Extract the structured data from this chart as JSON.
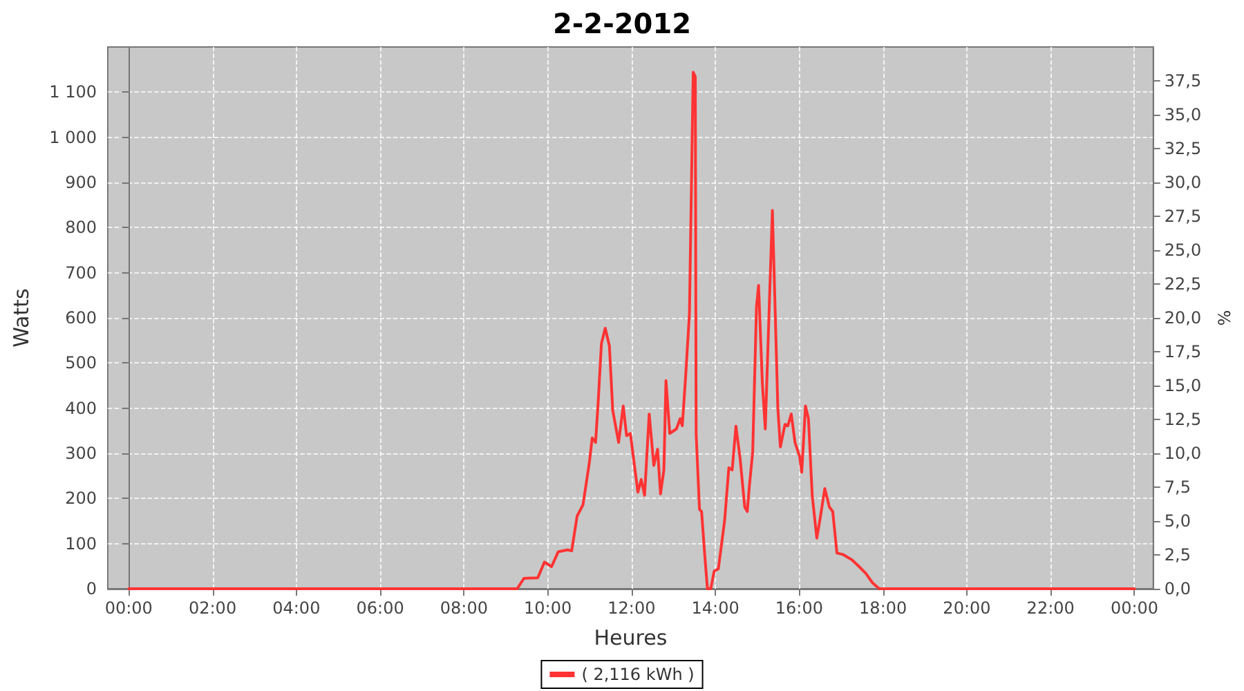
{
  "chart_data": {
    "type": "line",
    "title": "2-2-2012",
    "xlabel": "Heures",
    "ylabel": "Watts",
    "y2label": "%",
    "x": [
      0,
      9.27,
      9.43,
      9.76,
      9.92,
      10.09,
      10.25,
      10.47,
      10.57,
      10.7,
      10.84,
      10.99,
      11.06,
      11.14,
      11.2,
      11.28,
      11.37,
      11.47,
      11.55,
      11.69,
      11.8,
      11.88,
      11.97,
      12.15,
      12.23,
      12.31,
      12.42,
      12.53,
      12.62,
      12.69,
      12.77,
      12.82,
      12.91,
      13.07,
      13.16,
      13.21,
      13.29,
      13.38,
      13.47,
      13.52,
      13.54,
      13.62,
      13.67,
      13.75,
      13.81,
      13.89,
      13.97,
      14.07,
      14.22,
      14.32,
      14.4,
      14.49,
      14.59,
      14.7,
      14.76,
      14.81,
      14.89,
      14.98,
      15.03,
      15.12,
      15.19,
      15.36,
      15.41,
      15.49,
      15.55,
      15.66,
      15.73,
      15.81,
      15.9,
      16.01,
      16.06,
      16.15,
      16.22,
      16.31,
      16.42,
      16.5,
      16.61,
      16.72,
      16.8,
      16.9,
      17.04,
      17.26,
      17.43,
      17.59,
      17.75,
      17.91,
      24
    ],
    "series": [
      {
        "name": "( 2,116 kWh )",
        "color": "#ff3333",
        "values": [
          0,
          0,
          23,
          24,
          59,
          49,
          82,
          86,
          84,
          161,
          186,
          278,
          334,
          324,
          410,
          543,
          577,
          538,
          395,
          324,
          405,
          339,
          344,
          214,
          242,
          207,
          387,
          273,
          309,
          210,
          263,
          461,
          344,
          354,
          377,
          361,
          471,
          609,
          1144,
          1134,
          344,
          176,
          171,
          69,
          0,
          0,
          39,
          44,
          151,
          268,
          263,
          360,
          288,
          181,
          171,
          227,
          303,
          624,
          672,
          456,
          354,
          838,
          670,
          400,
          314,
          364,
          361,
          387,
          324,
          293,
          258,
          405,
          377,
          207,
          112,
          156,
          222,
          181,
          171,
          79,
          76,
          64,
          49,
          34,
          13,
          0,
          0
        ]
      }
    ],
    "xlim": [
      -0.5,
      24.45
    ],
    "xticks": [
      {
        "value": 0,
        "label": "00:00"
      },
      {
        "value": 2,
        "label": "02:00"
      },
      {
        "value": 4,
        "label": "04:00"
      },
      {
        "value": 6,
        "label": "06:00"
      },
      {
        "value": 8,
        "label": "08:00"
      },
      {
        "value": 10,
        "label": "10:00"
      },
      {
        "value": 12,
        "label": "12:00"
      },
      {
        "value": 14,
        "label": "14:00"
      },
      {
        "value": 16,
        "label": "16:00"
      },
      {
        "value": 18,
        "label": "18:00"
      },
      {
        "value": 20,
        "label": "20:00"
      },
      {
        "value": 22,
        "label": "22:00"
      },
      {
        "value": 24,
        "label": "00:00"
      }
    ],
    "ylim": [
      0,
      1200
    ],
    "yticks": [
      0,
      100,
      200,
      300,
      400,
      500,
      600,
      700,
      800,
      900,
      {
        "value": 1000,
        "label": "1 000"
      },
      {
        "value": 1100,
        "label": "1 100"
      }
    ],
    "y2lim": [
      0,
      40
    ],
    "y2ticks": [
      {
        "value": 0,
        "label": "0,0"
      },
      {
        "value": 2.5,
        "label": "2,5"
      },
      {
        "value": 5,
        "label": "5,0"
      },
      {
        "value": 7.5,
        "label": "7,5"
      },
      {
        "value": 10,
        "label": "10,0"
      },
      {
        "value": 12.5,
        "label": "12,5"
      },
      {
        "value": 15,
        "label": "15,0"
      },
      {
        "value": 17.5,
        "label": "17,5"
      },
      {
        "value": 20,
        "label": "20,0"
      },
      {
        "value": 22.5,
        "label": "22,5"
      },
      {
        "value": 25,
        "label": "25,0"
      },
      {
        "value": 27.5,
        "label": "27,5"
      },
      {
        "value": 30,
        "label": "30,0"
      },
      {
        "value": 32.5,
        "label": "32,5"
      },
      {
        "value": 35,
        "label": "35,0"
      },
      {
        "value": 37.5,
        "label": "37,5"
      }
    ],
    "grid": true,
    "legend": "bottom",
    "marker": "none",
    "line_style": "solid"
  }
}
